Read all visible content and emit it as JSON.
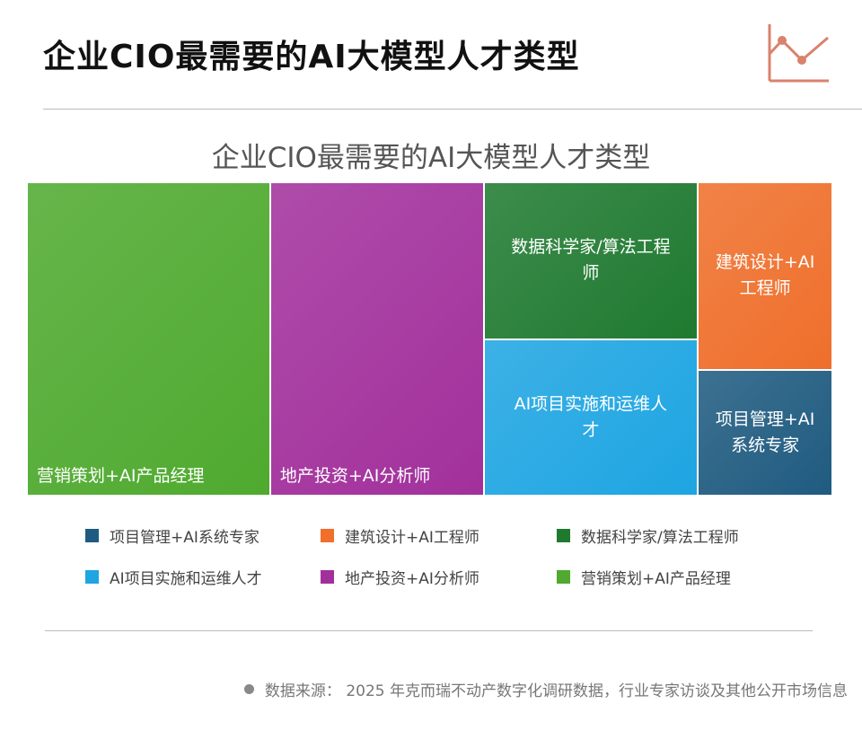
{
  "header": {
    "title": "企业CIO最需要的AI大模型人才类型",
    "logo_icon": "line-chart-icon",
    "logo_color": "#d9826d"
  },
  "chart_data": {
    "type": "treemap",
    "title": "企业CIO最需要的AI大模型人才类型",
    "categories": [
      "项目管理+AI系统专家",
      "建筑设计+AI工程师",
      "数据科学家/算法工程师",
      "AI项目实施和运维人才",
      "地产投资+AI分析师",
      "营销策划+AI产品经理"
    ],
    "cell_labels": [
      "项目管理+AI\n系统专家",
      "建筑设计+AI\n工程师",
      "数据科学家/算法工程\n师",
      "AI项目实施和运维人\n才",
      "地产投资+AI分析师",
      "营销策划+AI产品经理"
    ],
    "values": [
      6.7,
      10.0,
      13.3,
      13.3,
      26.5,
      30.2
    ],
    "colors": [
      "#1f5b80",
      "#ef6f2b",
      "#1f7a30",
      "#1ea5e2",
      "#a2309c",
      "#4faa2f"
    ],
    "legend": "bottom"
  },
  "footer": {
    "source": "数据来源： 2025 年克而瑞不动产数字化调研数据，行业专家访谈及其他公开市场信息"
  }
}
